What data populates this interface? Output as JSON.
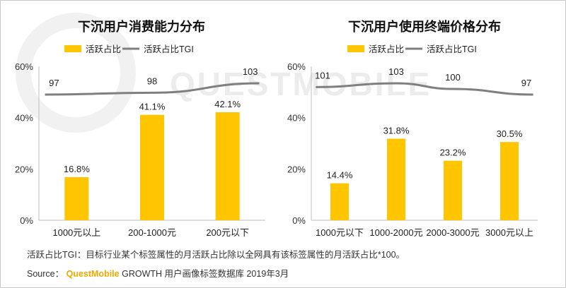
{
  "footnote": "活跃占比TGI：目标行业某个标签属性的月活跃占比除以全网具有该标签属性的月活跃占比*100。",
  "source": {
    "prefix": "Source：",
    "brand": "QuestMobile",
    "rest": "GROWTH 用户画像标签数据库 2019年3月"
  },
  "watermark": "QUESTMOBILE",
  "colors": {
    "bar": "#FFC600",
    "line": "#7F7F7F",
    "axis": "#BFBFBF"
  },
  "chart_data": [
    {
      "type": "bar",
      "title": "下沉用户消费能力分布",
      "legend": [
        "活跃占比",
        "活跃占比TGI"
      ],
      "categories": [
        "1000元以上",
        "200-1000元",
        "200元以下"
      ],
      "series": [
        {
          "name": "活跃占比",
          "type": "bar",
          "values": [
            16.8,
            41.1,
            42.1
          ],
          "labels": [
            "16.8%",
            "41.1%",
            "42.1%"
          ]
        },
        {
          "name": "活跃占比TGI",
          "type": "line",
          "values": [
            97,
            98,
            103
          ]
        }
      ],
      "yticks": [
        "0%",
        "20%",
        "40%",
        "60%"
      ],
      "ylim": [
        0,
        60
      ]
    },
    {
      "type": "bar",
      "title": "下沉用户使用终端价格分布",
      "legend": [
        "活跃占比",
        "活跃占比TGI"
      ],
      "categories": [
        "1000元以下",
        "1000-2000元",
        "2000-3000元",
        "3000元以上"
      ],
      "series": [
        {
          "name": "活跃占比",
          "type": "bar",
          "values": [
            14.4,
            31.8,
            23.2,
            30.5
          ],
          "labels": [
            "14.4%",
            "31.8%",
            "23.2%",
            "30.5%"
          ]
        },
        {
          "name": "活跃占比TGI",
          "type": "line",
          "values": [
            101,
            103,
            100,
            97
          ]
        }
      ],
      "yticks": [
        "0%",
        "20%",
        "40%",
        "60%"
      ],
      "ylim": [
        0,
        60
      ]
    }
  ]
}
